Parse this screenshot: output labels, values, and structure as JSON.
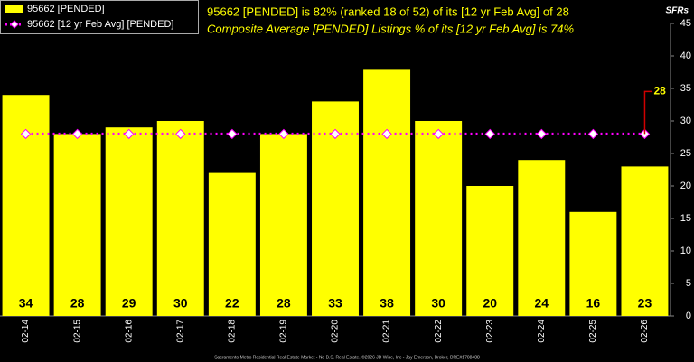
{
  "chart_data": {
    "type": "bar",
    "title": "95662 [PENDED] is 82% (ranked 18 of 52) of its [12 yr Feb Avg] of 28",
    "subtitle": "Composite Average [PENDED] Listings % of its [12 yr Feb Avg] is 74%",
    "y_label": "SFRs",
    "footer": "Sacramento Metro Residential Real Estate Market - No B.S. Real Estate. ©2026 JD Wise, Inc - Jay Emerson, Broker, DRE#1708488",
    "categories": [
      "02-14",
      "02-15",
      "02-16",
      "02-17",
      "02-18",
      "02-19",
      "02-20",
      "02-21",
      "02-22",
      "02-23",
      "02-24",
      "02-25",
      "02-26"
    ],
    "series": [
      {
        "name": "95662 [PENDED]",
        "color": "#ffff00",
        "values": [
          34,
          28,
          29,
          30,
          22,
          28,
          33,
          38,
          30,
          20,
          24,
          16,
          23
        ]
      },
      {
        "name": "95662 [12 yr Feb Avg] [PENDED]",
        "color": "#ff00ff",
        "values": [
          28,
          28,
          28,
          28,
          28,
          28,
          28,
          28,
          28,
          28,
          28,
          28,
          28
        ]
      }
    ],
    "ylim": [
      0,
      45
    ],
    "yticks": [
      0,
      5,
      10,
      15,
      20,
      25,
      30,
      35,
      40,
      45
    ]
  }
}
